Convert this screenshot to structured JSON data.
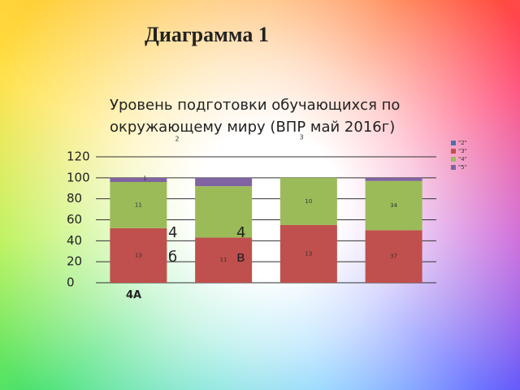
{
  "heading": "Диаграмма 1",
  "chart_data": {
    "type": "stacked-bar",
    "title": "Уровень подготовки обучающихся по окружающему миру (ВПР май 2016г)",
    "annotations": [
      "2",
      "3"
    ],
    "categories": [
      "4А",
      "4 б",
      "4 в",
      null
    ],
    "series": [
      {
        "name": "\"2\"",
        "color": "#4f6fb0",
        "values": [
          null,
          null,
          null,
          null
        ],
        "count_labels": [
          null,
          null,
          null,
          null
        ]
      },
      {
        "name": "\"3\"",
        "color": "#c0504d",
        "values": [
          52,
          43,
          55,
          50
        ],
        "count_labels": [
          "13",
          "11",
          "13",
          "37"
        ]
      },
      {
        "name": "\"4\"",
        "color": "#9bbb59",
        "values": [
          44,
          49,
          45,
          47
        ],
        "count_labels": [
          "11",
          null,
          "10",
          "34"
        ]
      },
      {
        "name": "\"5\"",
        "color": "#8064a2",
        "values": [
          4,
          8,
          null,
          3
        ],
        "count_labels": [
          "1",
          null,
          null,
          null
        ]
      }
    ],
    "ylim": [
      0,
      120
    ],
    "yticks": [
      0,
      20,
      40,
      60,
      80,
      100,
      120
    ],
    "grid": true
  }
}
